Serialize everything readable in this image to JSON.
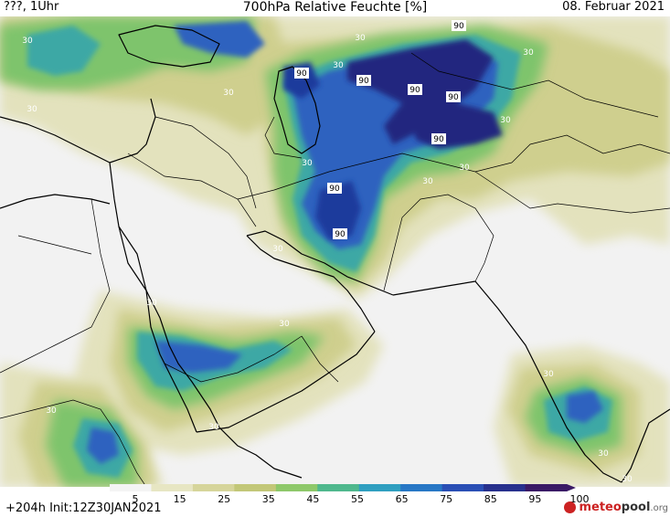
{
  "header": {
    "left": "???, 1Uhr",
    "title": "700hPa Relative Feuchte [%]",
    "date": "08. Februar 2021"
  },
  "footer": {
    "run_info": "+204h  Init:12Z30JAN2021",
    "logo_brand": "meteo",
    "logo_brand2": "pool",
    "logo_tld": ".org"
  },
  "colorbar": {
    "ticks": [
      "5",
      "15",
      "25",
      "35",
      "45",
      "55",
      "65",
      "75",
      "85",
      "95",
      "100"
    ],
    "colors": [
      "#f4f4f4",
      "#e7e6c3",
      "#d6d59b",
      "#c2c778",
      "#8ec86a",
      "#4fb88d",
      "#2f9fc0",
      "#2777c5",
      "#2a4fb5",
      "#27308d",
      "#3a1a66"
    ]
  },
  "contour_labels": [
    {
      "text": "90"
    },
    {
      "text": "90"
    },
    {
      "text": "90"
    },
    {
      "text": "90"
    },
    {
      "text": "90"
    },
    {
      "text": "90"
    },
    {
      "text": "90"
    },
    {
      "text": "30"
    },
    {
      "text": "30"
    },
    {
      "text": "30"
    },
    {
      "text": "30"
    },
    {
      "text": "30"
    },
    {
      "text": "30"
    },
    {
      "text": "30"
    },
    {
      "text": "30"
    },
    {
      "text": "30"
    },
    {
      "text": "30"
    },
    {
      "text": "30"
    },
    {
      "text": "30"
    },
    {
      "text": "30"
    },
    {
      "text": "30"
    },
    {
      "text": "30"
    },
    {
      "text": "30"
    },
    {
      "text": "30"
    },
    {
      "text": "30"
    }
  ]
}
